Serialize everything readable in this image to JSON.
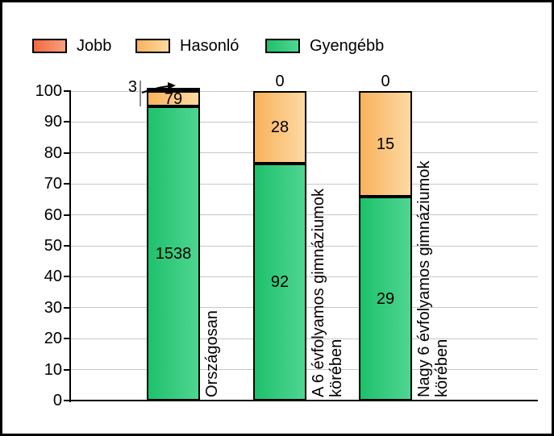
{
  "chart_data": {
    "type": "bar",
    "stacked": true,
    "title": "",
    "xlabel": "",
    "ylabel": "",
    "ylim": [
      0,
      100
    ],
    "y_ticks": [
      0,
      10,
      20,
      30,
      40,
      50,
      60,
      70,
      80,
      90,
      100
    ],
    "grid": true,
    "legend_position": "top-left",
    "value_semantics": "segment labels are raw counts; bar heights are percent of stack total",
    "series": [
      {
        "name": "Jobb",
        "color_left": "#f2683f",
        "color_right": "#f9a07e",
        "values": [
          3,
          0,
          0
        ]
      },
      {
        "name": "Hasonló",
        "color_left": "#f9b25c",
        "color_right": "#fdd9a2",
        "values": [
          79,
          28,
          15
        ]
      },
      {
        "name": "Gyengébb",
        "color_left": "#1ec16c",
        "color_right": "#4fd591",
        "values": [
          1538,
          92,
          29
        ]
      }
    ],
    "categories": [
      "Országosan",
      "A 6 évfolyamos gimnáziumok\nkörében",
      "Nagy 6 évfolyamos gimnáziumok\nkörében"
    ],
    "bars": [
      {
        "label": "Országosan",
        "jobb": 3,
        "hasonlo": 79,
        "gyengebb": 1538,
        "top_label": "",
        "jobb_annotated": true
      },
      {
        "label": "A 6 évfolyamos gimnáziumok\nkörében",
        "jobb": 0,
        "hasonlo": 28,
        "gyengebb": 92,
        "top_label": "0",
        "jobb_annotated": false
      },
      {
        "label": "Nagy 6 évfolyamos gimnáziumok\nkörében",
        "jobb": 0,
        "hasonlo": 15,
        "gyengebb": 29,
        "top_label": "0",
        "jobb_annotated": false
      }
    ],
    "annotation": {
      "text": "3",
      "target_bar": 0,
      "target_series": "Jobb"
    },
    "colors": {
      "gridline": "#c8c8c8",
      "axis": "#000000",
      "leader_line": "#8a8a8a",
      "text": "#000000"
    }
  },
  "legend": {
    "items": [
      {
        "label": "Jobb"
      },
      {
        "label": "Hasonló"
      },
      {
        "label": "Gyengébb"
      }
    ]
  }
}
